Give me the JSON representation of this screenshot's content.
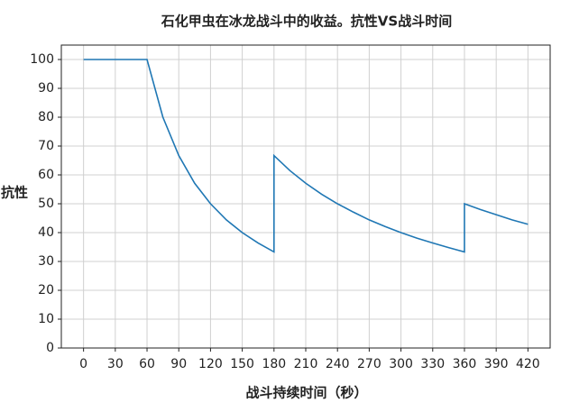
{
  "chart_data": {
    "type": "line",
    "title": "石化甲虫在冰龙战斗中的收益。抗性VS战斗时间",
    "x_label": "战斗持续时间（秒）",
    "y_label": "抗性",
    "series": [
      {
        "name": "抗性",
        "color": "#1f77b4",
        "x": [
          0,
          60,
          75,
          90,
          105,
          120,
          135,
          150,
          165,
          180,
          180,
          195,
          210,
          225,
          240,
          255,
          270,
          285,
          300,
          315,
          330,
          345,
          360,
          360,
          375,
          390,
          405,
          420
        ],
        "values": [
          100,
          100,
          80,
          66.7,
          57.1,
          50,
          44.4,
          40,
          36.4,
          33.3,
          66.7,
          61.5,
          57.1,
          53.3,
          50,
          47.1,
          44.4,
          42.1,
          40,
          38.1,
          36.4,
          34.8,
          33.3,
          50,
          48,
          46.2,
          44.4,
          42.9
        ]
      }
    ],
    "xlim": [
      -21,
      441
    ],
    "ylim": [
      0,
      105
    ],
    "xticks": [
      0,
      30,
      60,
      90,
      120,
      150,
      180,
      210,
      240,
      270,
      300,
      330,
      360,
      390,
      420
    ],
    "yticks": [
      0,
      10,
      20,
      30,
      40,
      50,
      60,
      70,
      80,
      90,
      100
    ],
    "grid": true
  }
}
